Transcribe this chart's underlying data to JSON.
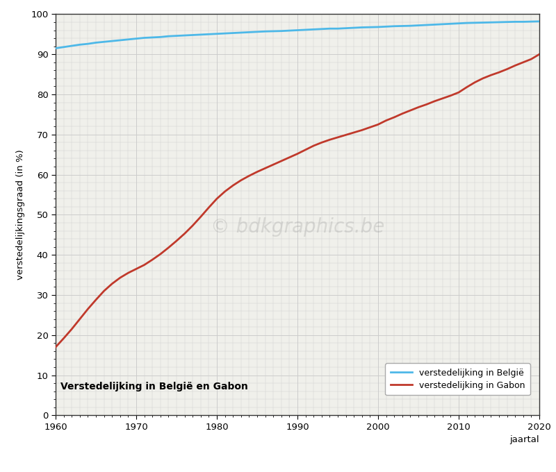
{
  "title": "Verstedelijking in België en Gabon",
  "ylabel": "verstedelijkingsgraad (in %)",
  "xlabel": "jaartal",
  "years": [
    1960,
    1961,
    1962,
    1963,
    1964,
    1965,
    1966,
    1967,
    1968,
    1969,
    1970,
    1971,
    1972,
    1973,
    1974,
    1975,
    1976,
    1977,
    1978,
    1979,
    1980,
    1981,
    1982,
    1983,
    1984,
    1985,
    1986,
    1987,
    1988,
    1989,
    1990,
    1991,
    1992,
    1993,
    1994,
    1995,
    1996,
    1997,
    1998,
    1999,
    2000,
    2001,
    2002,
    2003,
    2004,
    2005,
    2006,
    2007,
    2008,
    2009,
    2010,
    2011,
    2012,
    2013,
    2014,
    2015,
    2016,
    2017,
    2018,
    2019,
    2020
  ],
  "belgium": [
    91.5,
    91.8,
    92.1,
    92.4,
    92.6,
    92.9,
    93.1,
    93.3,
    93.5,
    93.7,
    93.9,
    94.1,
    94.2,
    94.3,
    94.5,
    94.6,
    94.7,
    94.8,
    94.9,
    95.0,
    95.1,
    95.2,
    95.3,
    95.4,
    95.5,
    95.6,
    95.7,
    95.75,
    95.8,
    95.9,
    96.0,
    96.1,
    96.2,
    96.3,
    96.4,
    96.4,
    96.5,
    96.6,
    96.7,
    96.75,
    96.8,
    96.9,
    97.0,
    97.05,
    97.1,
    97.2,
    97.3,
    97.4,
    97.5,
    97.6,
    97.7,
    97.8,
    97.85,
    97.9,
    97.95,
    98.0,
    98.05,
    98.1,
    98.1,
    98.15,
    98.2
  ],
  "gabon": [
    17.0,
    19.2,
    21.5,
    24.0,
    26.5,
    28.8,
    31.0,
    32.8,
    34.3,
    35.5,
    36.5,
    37.5,
    38.8,
    40.2,
    41.8,
    43.5,
    45.3,
    47.3,
    49.5,
    51.8,
    54.0,
    55.8,
    57.3,
    58.6,
    59.7,
    60.7,
    61.6,
    62.5,
    63.4,
    64.3,
    65.2,
    66.2,
    67.2,
    68.0,
    68.7,
    69.3,
    69.9,
    70.5,
    71.1,
    71.8,
    72.5,
    73.5,
    74.3,
    75.2,
    76.0,
    76.8,
    77.5,
    78.3,
    79.0,
    79.7,
    80.5,
    81.8,
    83.0,
    84.0,
    84.8,
    85.5,
    86.3,
    87.2,
    88.0,
    88.8,
    90.0
  ],
  "belgium_color": "#4db8e8",
  "gabon_color": "#c0392b",
  "figure_bg": "#ffffff",
  "plot_bg": "#f0f0eb",
  "grid_color": "#cccccc",
  "legend_belgium": "verstedelijking in België",
  "legend_gabon": "verstedelijking in Gabon",
  "watermark": "© bdkgraphics.be",
  "ylim": [
    0,
    100
  ],
  "xlim": [
    1960,
    2020
  ],
  "yticks": [
    0,
    10,
    20,
    30,
    40,
    50,
    60,
    70,
    80,
    90,
    100
  ],
  "xticks": [
    1960,
    1970,
    1980,
    1990,
    2000,
    2010,
    2020
  ]
}
